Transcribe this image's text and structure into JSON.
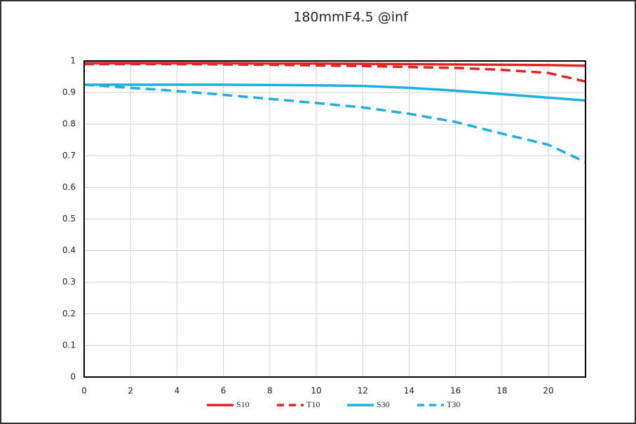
{
  "chart_data": {
    "type": "line",
    "title": "180mmF4.5 @inf",
    "x": [
      0,
      2,
      4,
      6,
      8,
      10,
      12,
      14,
      16,
      18,
      20,
      21.6
    ],
    "series": [
      {
        "name": "S10",
        "color": "#e02424",
        "style": "solid",
        "values": [
          0.993,
          0.993,
          0.993,
          0.993,
          0.992,
          0.992,
          0.991,
          0.99,
          0.989,
          0.988,
          0.987,
          0.985
        ]
      },
      {
        "name": "T10",
        "color": "#e02424",
        "style": "dashed",
        "values": [
          0.99,
          0.99,
          0.99,
          0.989,
          0.988,
          0.986,
          0.984,
          0.981,
          0.978,
          0.972,
          0.962,
          0.935
        ]
      },
      {
        "name": "S30",
        "color": "#1aafe0",
        "style": "solid",
        "values": [
          0.925,
          0.925,
          0.925,
          0.925,
          0.924,
          0.923,
          0.921,
          0.915,
          0.906,
          0.895,
          0.884,
          0.875
        ]
      },
      {
        "name": "T30",
        "color": "#1aafe0",
        "style": "dashed",
        "values": [
          0.925,
          0.915,
          0.905,
          0.893,
          0.88,
          0.867,
          0.853,
          0.833,
          0.807,
          0.77,
          0.735,
          0.68
        ]
      }
    ],
    "xlim": [
      0,
      21.6
    ],
    "xticks": [
      0,
      2,
      4,
      6,
      8,
      10,
      12,
      14,
      16,
      18,
      20
    ],
    "ylim": [
      0,
      1
    ],
    "yticks": [
      0,
      0.1,
      0.2,
      0.3,
      0.4,
      0.5,
      0.6,
      0.7,
      0.8,
      0.9,
      1
    ],
    "grid": true,
    "legend": "bottom"
  }
}
